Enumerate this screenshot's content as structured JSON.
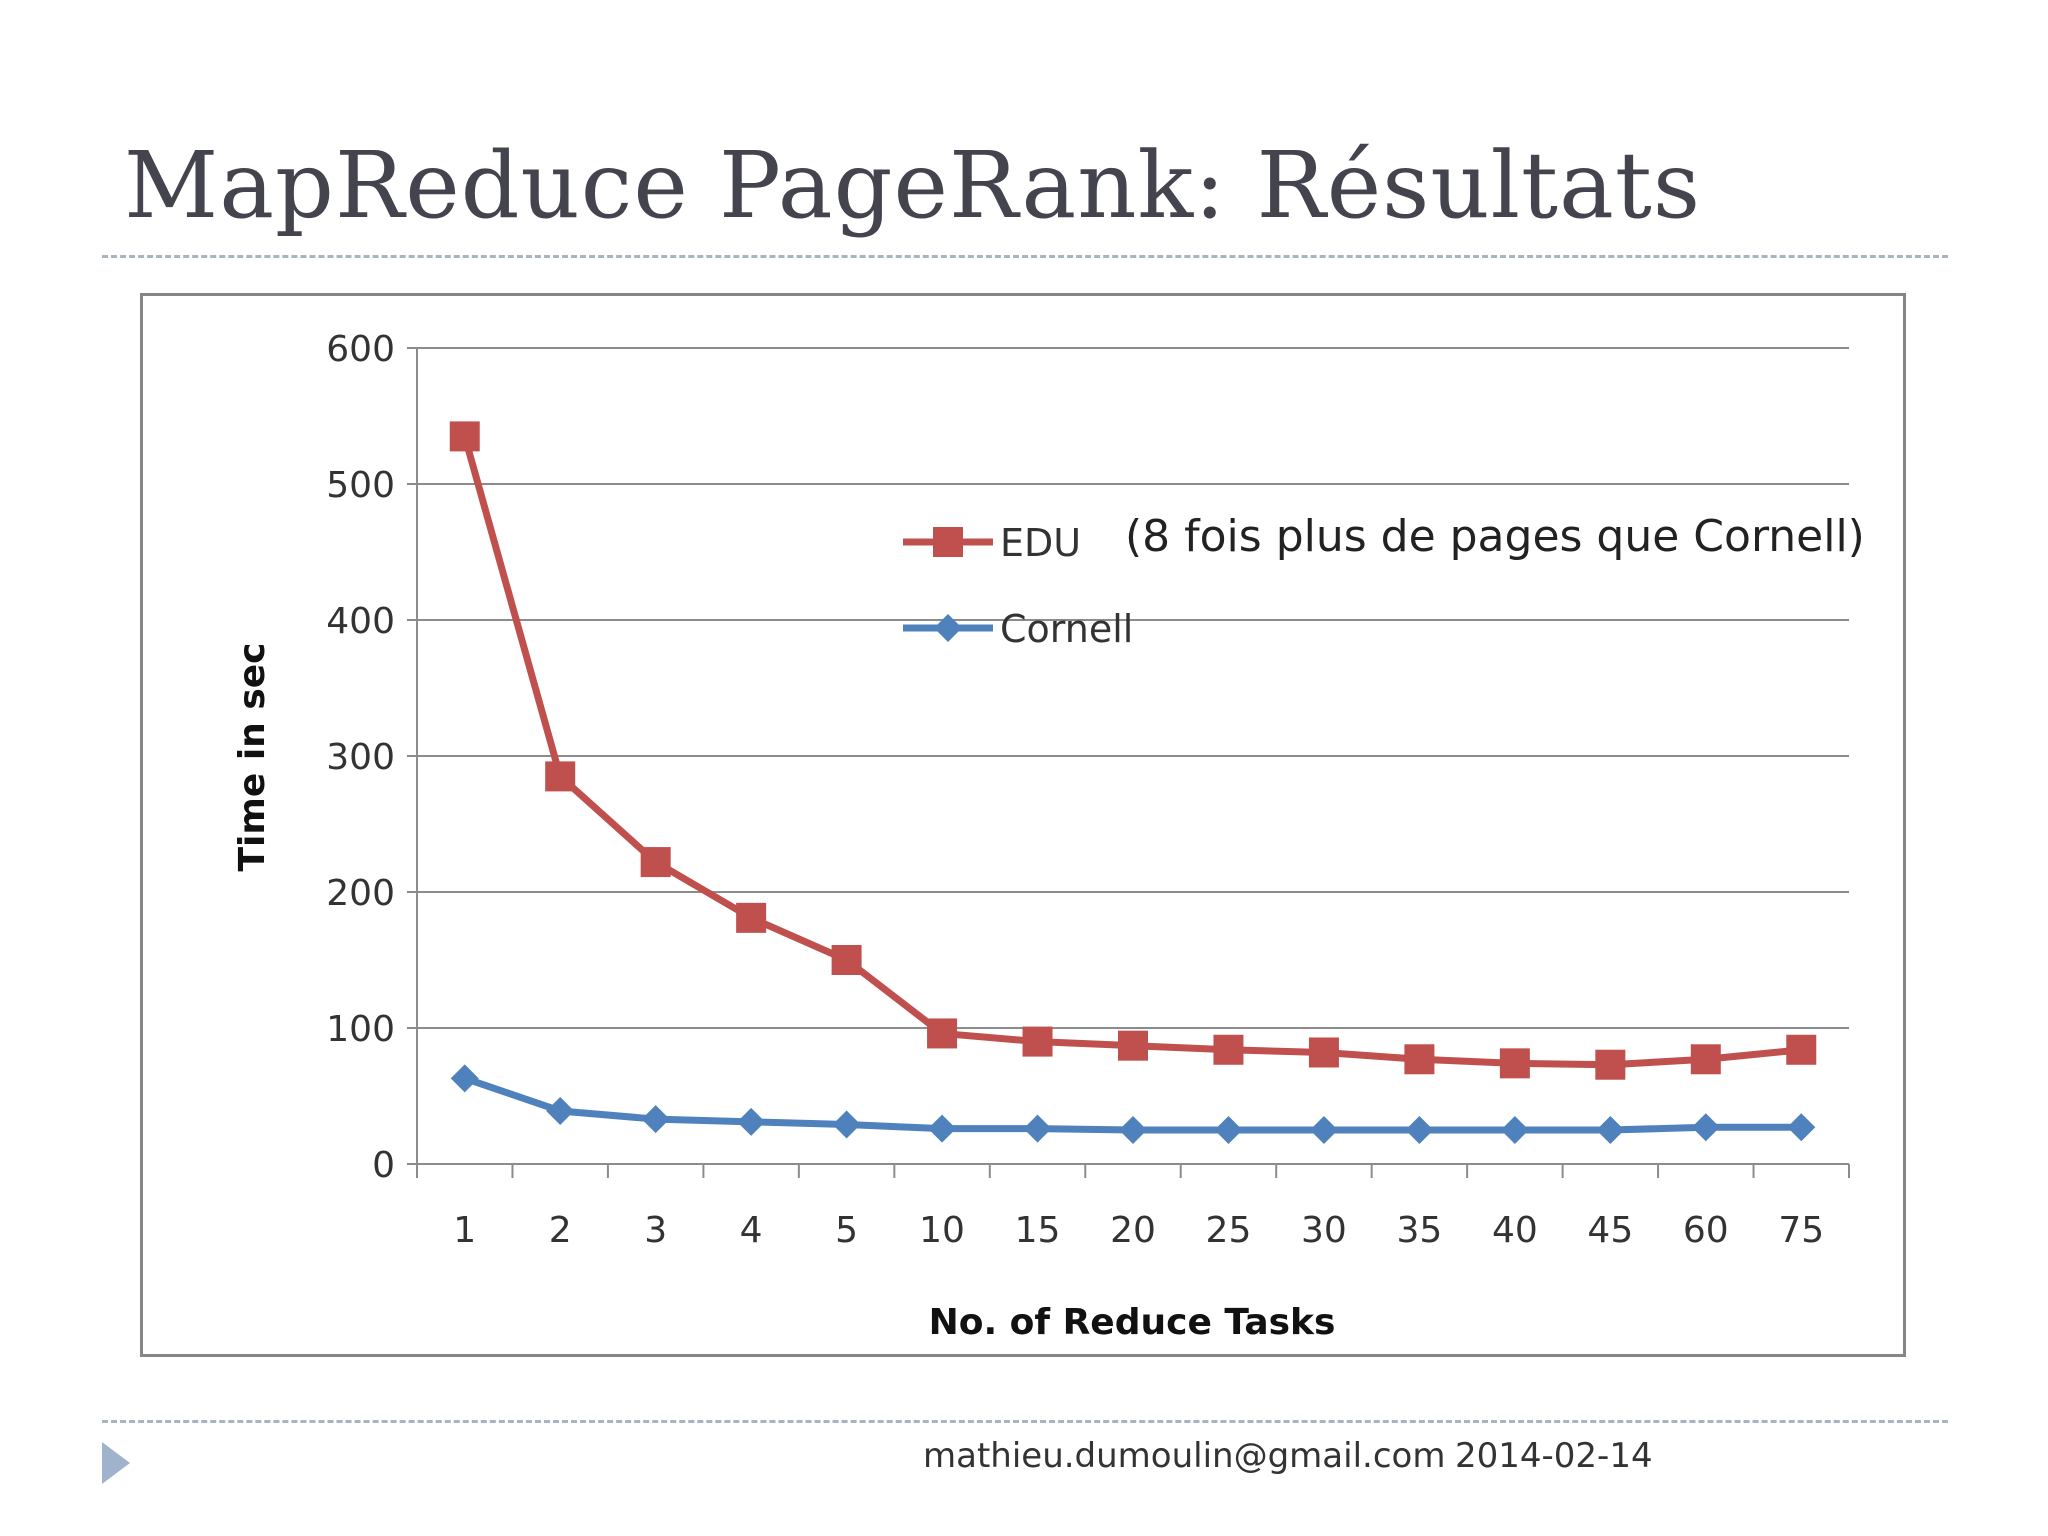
{
  "slide": {
    "title": "MapReduce PageRank: Résultats",
    "annotation": "(8 fois plus de pages que Cornell)",
    "footer_email": "mathieu.dumoulin@gmail.com",
    "footer_date": "2014-02-14"
  },
  "chart_data": {
    "type": "line",
    "title": "",
    "xlabel": "No. of Reduce Tasks",
    "ylabel": "Time in sec",
    "categories": [
      "1",
      "2",
      "3",
      "4",
      "5",
      "10",
      "15",
      "20",
      "25",
      "30",
      "35",
      "40",
      "45",
      "60",
      "75"
    ],
    "ylim": [
      0,
      600
    ],
    "yticks": [
      0,
      100,
      200,
      300,
      400,
      500,
      600
    ],
    "grid": true,
    "legend_position": "upper-middle",
    "series": [
      {
        "name": "EDU",
        "color": "#c0504d",
        "marker": "square",
        "values": [
          535,
          285,
          222,
          181,
          150,
          96,
          90,
          87,
          84,
          82,
          77,
          74,
          73,
          77,
          84
        ]
      },
      {
        "name": "Cornell",
        "color": "#4f81bd",
        "marker": "diamond",
        "values": [
          63,
          39,
          33,
          31,
          29,
          26,
          26,
          25,
          25,
          25,
          25,
          25,
          25,
          27,
          27
        ]
      }
    ]
  },
  "icons": {
    "footer_bullet": "triangle-right-icon"
  }
}
